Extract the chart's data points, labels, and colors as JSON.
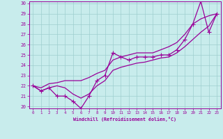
{
  "xlabel": "Windchill (Refroidissement éolien,°C)",
  "x": [
    0,
    1,
    2,
    3,
    4,
    5,
    6,
    7,
    8,
    9,
    10,
    11,
    12,
    13,
    14,
    15,
    16,
    17,
    18,
    19,
    20,
    21,
    22,
    23
  ],
  "line_zigzag": [
    22.0,
    21.5,
    21.8,
    21.0,
    21.0,
    20.5,
    19.8,
    21.0,
    22.5,
    23.0,
    25.2,
    24.8,
    24.5,
    24.8,
    24.8,
    24.8,
    25.0,
    25.0,
    25.5,
    26.5,
    28.0,
    30.2,
    27.2,
    29.0
  ],
  "line_low": [
    22.0,
    21.5,
    21.8,
    22.0,
    21.8,
    21.2,
    20.8,
    21.2,
    22.0,
    22.5,
    23.5,
    23.8,
    24.0,
    24.2,
    24.3,
    24.5,
    24.7,
    24.8,
    25.2,
    25.8,
    26.5,
    27.2,
    27.8,
    29.0
  ],
  "line_high": [
    22.0,
    21.8,
    22.2,
    22.3,
    22.5,
    22.5,
    22.5,
    22.8,
    23.2,
    23.5,
    24.5,
    24.8,
    25.0,
    25.2,
    25.2,
    25.2,
    25.5,
    25.8,
    26.2,
    27.0,
    28.0,
    28.5,
    28.8,
    29.0
  ],
  "color": "#990099",
  "bg_color": "#c8ecec",
  "grid_color": "#9ecece",
  "ylim": [
    20,
    30
  ],
  "xlim": [
    -0.5,
    23.5
  ],
  "yticks": [
    20,
    21,
    22,
    23,
    24,
    25,
    26,
    27,
    28,
    29,
    30
  ],
  "xticks": [
    0,
    1,
    2,
    3,
    4,
    5,
    6,
    7,
    8,
    9,
    10,
    11,
    12,
    13,
    14,
    15,
    16,
    17,
    18,
    19,
    20,
    21,
    22,
    23
  ]
}
